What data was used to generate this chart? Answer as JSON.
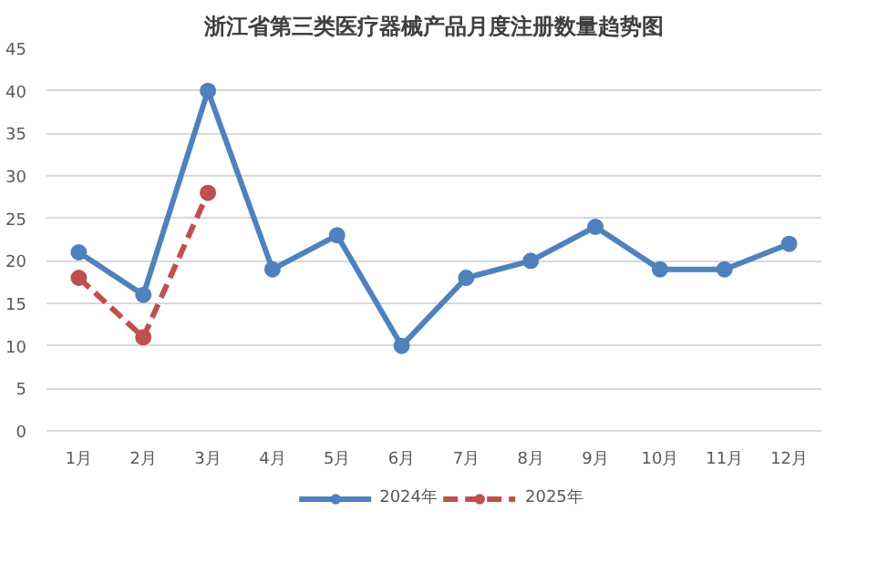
{
  "chart_data": {
    "type": "line",
    "title": "浙江省第三类医疗器械产品月度注册数量趋势图",
    "categories": [
      "1月",
      "2月",
      "3月",
      "4月",
      "5月",
      "6月",
      "7月",
      "8月",
      "9月",
      "10月",
      "11月",
      "12月"
    ],
    "series": [
      {
        "name": "2024年",
        "color": "#4f81bd",
        "values": [
          21,
          16,
          40,
          19,
          23,
          10,
          18,
          20,
          24,
          19,
          19,
          22
        ],
        "line_style": "solid"
      },
      {
        "name": "2025年",
        "color": "#c0504d",
        "values": [
          18,
          11,
          28,
          null,
          null,
          null,
          null,
          null,
          null,
          null,
          null,
          null
        ],
        "line_style": "dashed"
      }
    ],
    "ylim": [
      0,
      45
    ],
    "yticks": [
      0,
      5,
      10,
      15,
      20,
      25,
      30,
      35,
      40,
      45
    ],
    "grid": "y",
    "legend": "bottom",
    "marker": "circle"
  }
}
